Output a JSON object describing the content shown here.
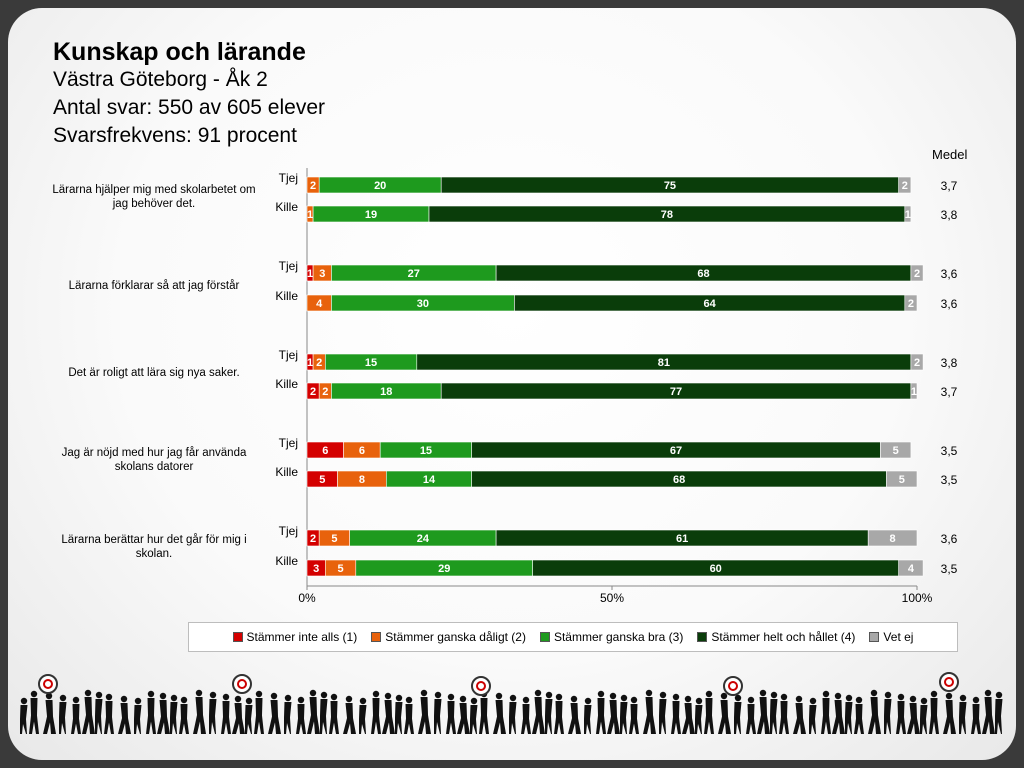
{
  "header": {
    "title": "Kunskap och lärande",
    "subtitle_school": "Västra Göteborg - Åk 2",
    "subtitle_responses": "Antal svar: 550 av 605 elever",
    "subtitle_rate": "Svarsfrekvens: 91 procent"
  },
  "medel_label": "Medel",
  "colors": {
    "inte_alls": "#d40000",
    "daligt": "#e8620c",
    "bra": "#1e9a1e",
    "helt": "#0a3d0a",
    "vet_ej": "#a8a8a8"
  },
  "chart_data": {
    "type": "bar",
    "orientation": "horizontal-stacked-percent",
    "xlim": [
      0,
      100
    ],
    "x_ticks": [
      "0%",
      "50%",
      "100%"
    ],
    "legend_position": "bottom",
    "series_names": [
      "Stämmer inte alls (1)",
      "Stämmer ganska dåligt (2)",
      "Stämmer ganska bra (3)",
      "Stämmer helt och hållet (4)",
      "Vet ej"
    ],
    "questions": [
      {
        "text": "Lärarna  hjälper mig med skolarbetet om jag behöver  det.",
        "rows": [
          {
            "label": "Tjej",
            "values": [
              0,
              2,
              20,
              75,
              2
            ],
            "medel": "3,7"
          },
          {
            "label": "Kille",
            "values": [
              0,
              1,
              19,
              78,
              1
            ],
            "medel": "3,8"
          }
        ]
      },
      {
        "text": "Lärarna  förklarar så att jag förstår",
        "rows": [
          {
            "label": "Tjej",
            "values": [
              1,
              3,
              27,
              68,
              2
            ],
            "medel": "3,6"
          },
          {
            "label": "Kille",
            "values": [
              0,
              4,
              30,
              64,
              2
            ],
            "medel": "3,6"
          }
        ]
      },
      {
        "text": "Det är roligt att lära sig nya saker.",
        "rows": [
          {
            "label": "Tjej",
            "values": [
              1,
              2,
              15,
              81,
              2
            ],
            "medel": "3,8"
          },
          {
            "label": "Kille",
            "values": [
              2,
              2,
              18,
              77,
              1
            ],
            "medel": "3,7"
          }
        ]
      },
      {
        "text": "Jag är nöjd med hur jag får använda  skolans datorer",
        "rows": [
          {
            "label": "Tjej",
            "values": [
              6,
              6,
              15,
              67,
              5
            ],
            "medel": "3,5"
          },
          {
            "label": "Kille",
            "values": [
              5,
              8,
              14,
              68,
              5
            ],
            "medel": "3,5"
          }
        ]
      },
      {
        "text": "Lärarna  berättar hur det går för mig i skolan.",
        "rows": [
          {
            "label": "Tjej",
            "values": [
              2,
              5,
              24,
              61,
              8
            ],
            "medel": "3,6"
          },
          {
            "label": "Kille",
            "values": [
              3,
              5,
              29,
              60,
              4
            ],
            "medel": "3,5"
          }
        ]
      }
    ]
  }
}
